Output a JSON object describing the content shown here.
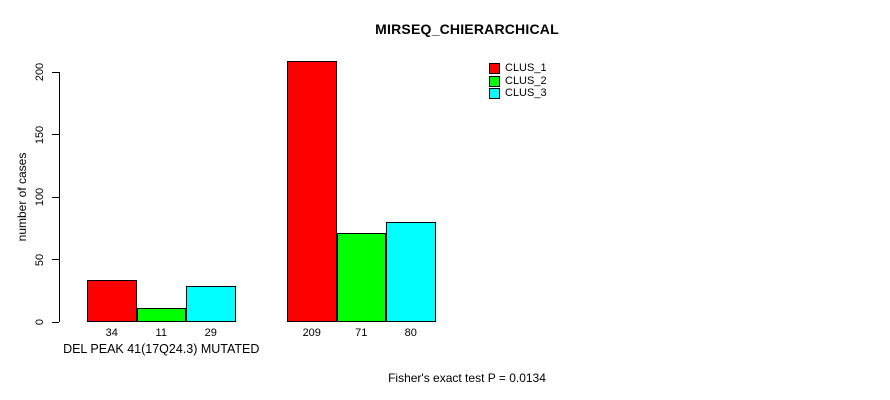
{
  "chart_data": {
    "type": "bar",
    "title": "MIRSEQ_CHIERARCHICAL",
    "ylabel": "number of cases",
    "xlabel": "DEL PEAK 41(17Q24.3) MUTATED",
    "yticks": [
      0,
      50,
      100,
      150,
      200
    ],
    "ylim": [
      0,
      209
    ],
    "grid": false,
    "legend_position": "top-right",
    "series": [
      {
        "name": "CLUS_1",
        "color": "#FF0000"
      },
      {
        "name": "CLUS_2",
        "color": "#00FF00"
      },
      {
        "name": "CLUS_3",
        "color": "#00FFFF"
      }
    ],
    "groups": [
      {
        "label": "DEL PEAK 41(17Q24.3) MUTATED",
        "values": [
          34,
          11,
          29
        ]
      },
      {
        "label": "",
        "values": [
          209,
          71,
          80
        ]
      }
    ],
    "annotation": "Fisher's exact test P = 0.0134"
  }
}
